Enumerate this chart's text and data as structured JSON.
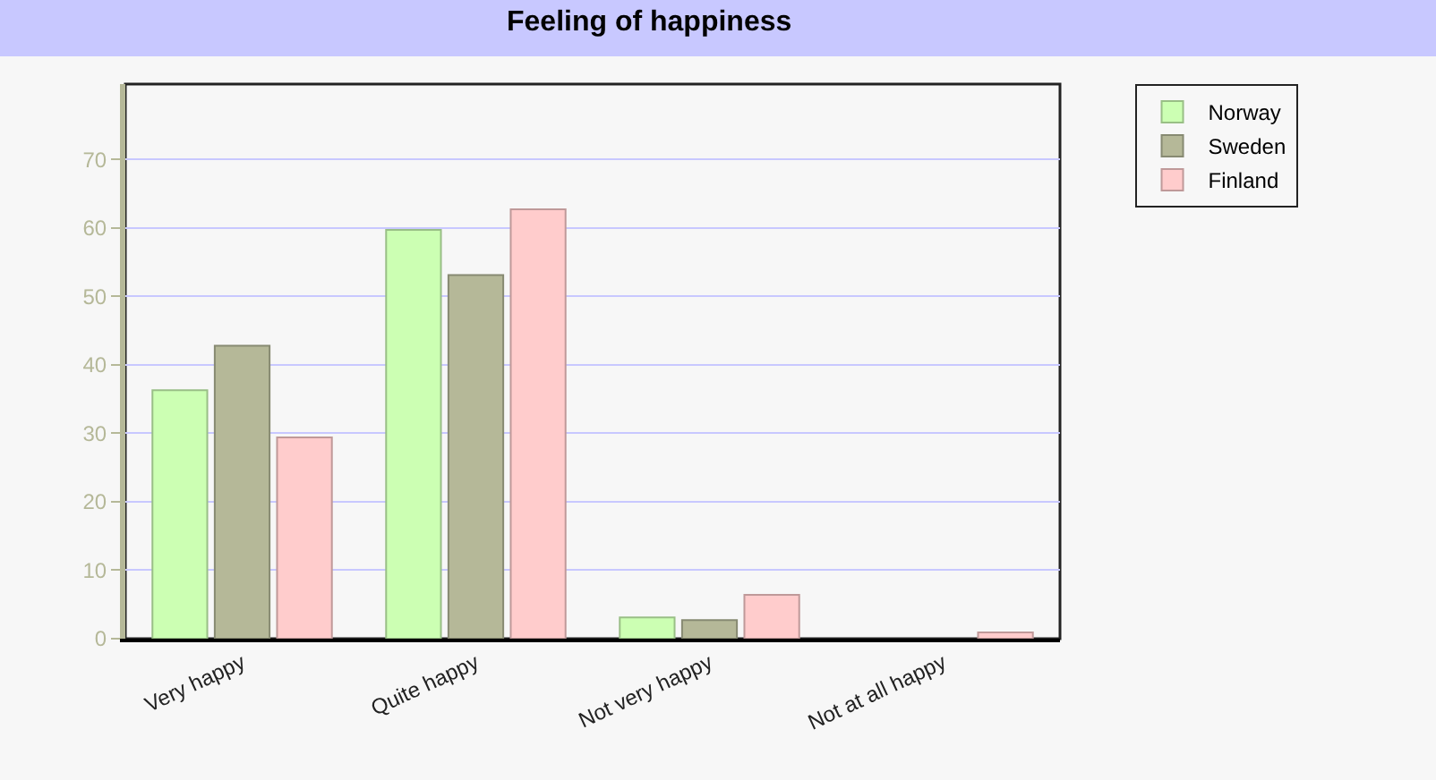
{
  "chart_data": {
    "type": "bar",
    "title": "Feeling of happiness",
    "categories": [
      "Very happy",
      "Quite happy",
      "Not very happy",
      "Not at all happy"
    ],
    "series": [
      {
        "name": "Norway",
        "color": "#ccffb3",
        "values": [
          36.3,
          59.7,
          3.1,
          null
        ]
      },
      {
        "name": "Sweden",
        "color": "#b5b898",
        "values": [
          42.8,
          53.1,
          2.7,
          null
        ]
      },
      {
        "name": "Finland",
        "color": "#ffcccc",
        "values": [
          29.4,
          62.7,
          6.4,
          0.9
        ]
      }
    ],
    "ylim": [
      0,
      81
    ],
    "yticks": [
      0,
      10,
      20,
      30,
      40,
      50,
      60,
      70
    ],
    "grid": "y",
    "legend": "right"
  }
}
